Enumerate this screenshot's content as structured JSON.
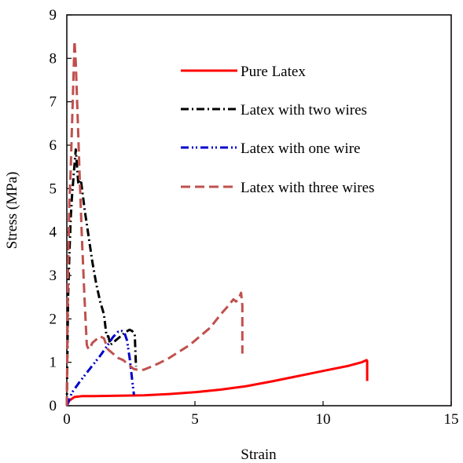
{
  "chart_data": {
    "type": "line",
    "xlabel": "Strain",
    "ylabel": "Stress (MPa)",
    "xlim": [
      0,
      15
    ],
    "ylim": [
      0,
      9
    ],
    "xticks": [
      "0",
      "5",
      "10",
      "15"
    ],
    "yticks": [
      "0",
      "1",
      "2",
      "3",
      "4",
      "5",
      "6",
      "7",
      "8",
      "9"
    ],
    "grid": false,
    "legend_position": "top-right",
    "series": [
      {
        "name": "Pure Latex",
        "color": "#ff0000",
        "style": "solid",
        "x": [
          0,
          0.1,
          0.3,
          0.6,
          1,
          2,
          3,
          4,
          5,
          6,
          7,
          8,
          9,
          10,
          11,
          11.5,
          11.7,
          11.72,
          11.72
        ],
        "y": [
          0,
          0.12,
          0.2,
          0.22,
          0.22,
          0.23,
          0.24,
          0.27,
          0.31,
          0.37,
          0.45,
          0.56,
          0.68,
          0.8,
          0.92,
          1.0,
          1.05,
          1.03,
          0.57
        ]
      },
      {
        "name": "Latex with two wires",
        "color": "#000000",
        "style": "dashdot",
        "x": [
          0,
          0.05,
          0.1,
          0.15,
          0.2,
          0.28,
          0.35,
          0.4,
          0.45,
          0.55,
          0.7,
          0.85,
          1.0,
          1.15,
          1.3,
          1.45,
          1.55,
          1.62,
          1.7,
          1.9,
          2.1,
          2.3,
          2.45,
          2.55,
          2.65,
          2.7
        ],
        "y": [
          0,
          2.5,
          3.5,
          4.3,
          4.8,
          5.4,
          5.9,
          5.5,
          5.1,
          5.2,
          4.5,
          3.9,
          3.3,
          2.8,
          2.4,
          2.1,
          1.6,
          1.6,
          1.4,
          1.5,
          1.6,
          1.7,
          1.75,
          1.72,
          1.65,
          0.9
        ]
      },
      {
        "name": "Latex with one wire",
        "color": "#0000cc",
        "style": "dashdotdot",
        "x": [
          0,
          0.2,
          0.5,
          0.9,
          1.3,
          1.6,
          1.8,
          2.0,
          2.15,
          2.25,
          2.35,
          2.45,
          2.55,
          2.62
        ],
        "y": [
          0,
          0.3,
          0.55,
          0.85,
          1.15,
          1.4,
          1.58,
          1.7,
          1.72,
          1.68,
          1.5,
          1.1,
          0.6,
          0.25
        ]
      },
      {
        "name": "Latex with three wires",
        "color": "#c0504d",
        "style": "dashed",
        "x": [
          0,
          0.05,
          0.1,
          0.15,
          0.2,
          0.25,
          0.3,
          0.35,
          0.42,
          0.5,
          0.58,
          0.68,
          0.78,
          0.85,
          0.92,
          1.0,
          1.1,
          1.2,
          1.3,
          1.45,
          1.6,
          1.8,
          2.0,
          2.2,
          2.4,
          2.6,
          2.8,
          3.0,
          3.3,
          3.6,
          4.0,
          4.4,
          4.8,
          5.2,
          5.6,
          6.0,
          6.3,
          6.5,
          6.6,
          6.7,
          6.8,
          6.85,
          6.85
        ],
        "y": [
          0,
          3.2,
          4.7,
          5.4,
          6.4,
          7.4,
          8.4,
          7.9,
          6.7,
          5.3,
          4.0,
          2.6,
          1.4,
          1.3,
          1.35,
          1.45,
          1.5,
          1.55,
          1.6,
          1.55,
          1.3,
          1.2,
          1.1,
          1.05,
          0.95,
          0.85,
          0.82,
          0.83,
          0.9,
          0.98,
          1.1,
          1.25,
          1.4,
          1.6,
          1.8,
          2.1,
          2.3,
          2.45,
          2.4,
          2.45,
          2.6,
          2.3,
          1.2
        ]
      }
    ]
  }
}
